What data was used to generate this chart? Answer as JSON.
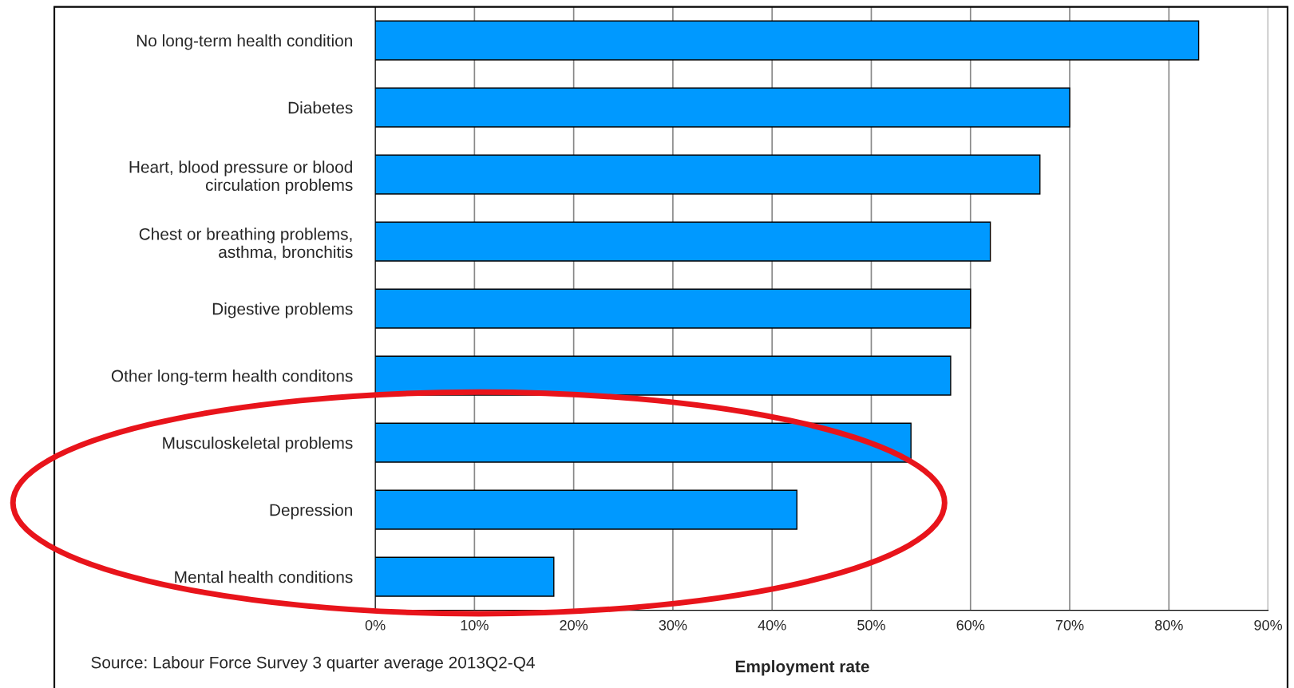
{
  "chart_data": {
    "type": "bar",
    "orientation": "horizontal",
    "categories": [
      "No long-term health condition",
      "Diabetes",
      "Heart, blood pressure or blood\ncirculation problems",
      "Chest or breathing problems,\nasthma, bronchitis",
      "Digestive problems",
      "Other long-term health conditons",
      "Musculoskeletal problems",
      "Depression",
      "Mental health conditions"
    ],
    "values": [
      83,
      70,
      67,
      62,
      60,
      58,
      54,
      42.5,
      18
    ],
    "color": "#0099ff",
    "xlim": [
      0,
      90
    ],
    "xticks": [
      {
        "value": 0,
        "label": "0%"
      },
      {
        "value": 10,
        "label": "10%"
      },
      {
        "value": 20,
        "label": "20%"
      },
      {
        "value": 30,
        "label": "30%"
      },
      {
        "value": 40,
        "label": "40%"
      },
      {
        "value": 50,
        "label": "50%"
      },
      {
        "value": 60,
        "label": "60%"
      },
      {
        "value": 70,
        "label": "70%"
      },
      {
        "value": 80,
        "label": "80%"
      },
      {
        "value": 90,
        "label": "90%"
      }
    ],
    "xlabel": "Employment rate",
    "grid": "x",
    "annotations": [
      "Source: Labour Force Survey 3 quarter average 2013Q2-Q4"
    ]
  }
}
